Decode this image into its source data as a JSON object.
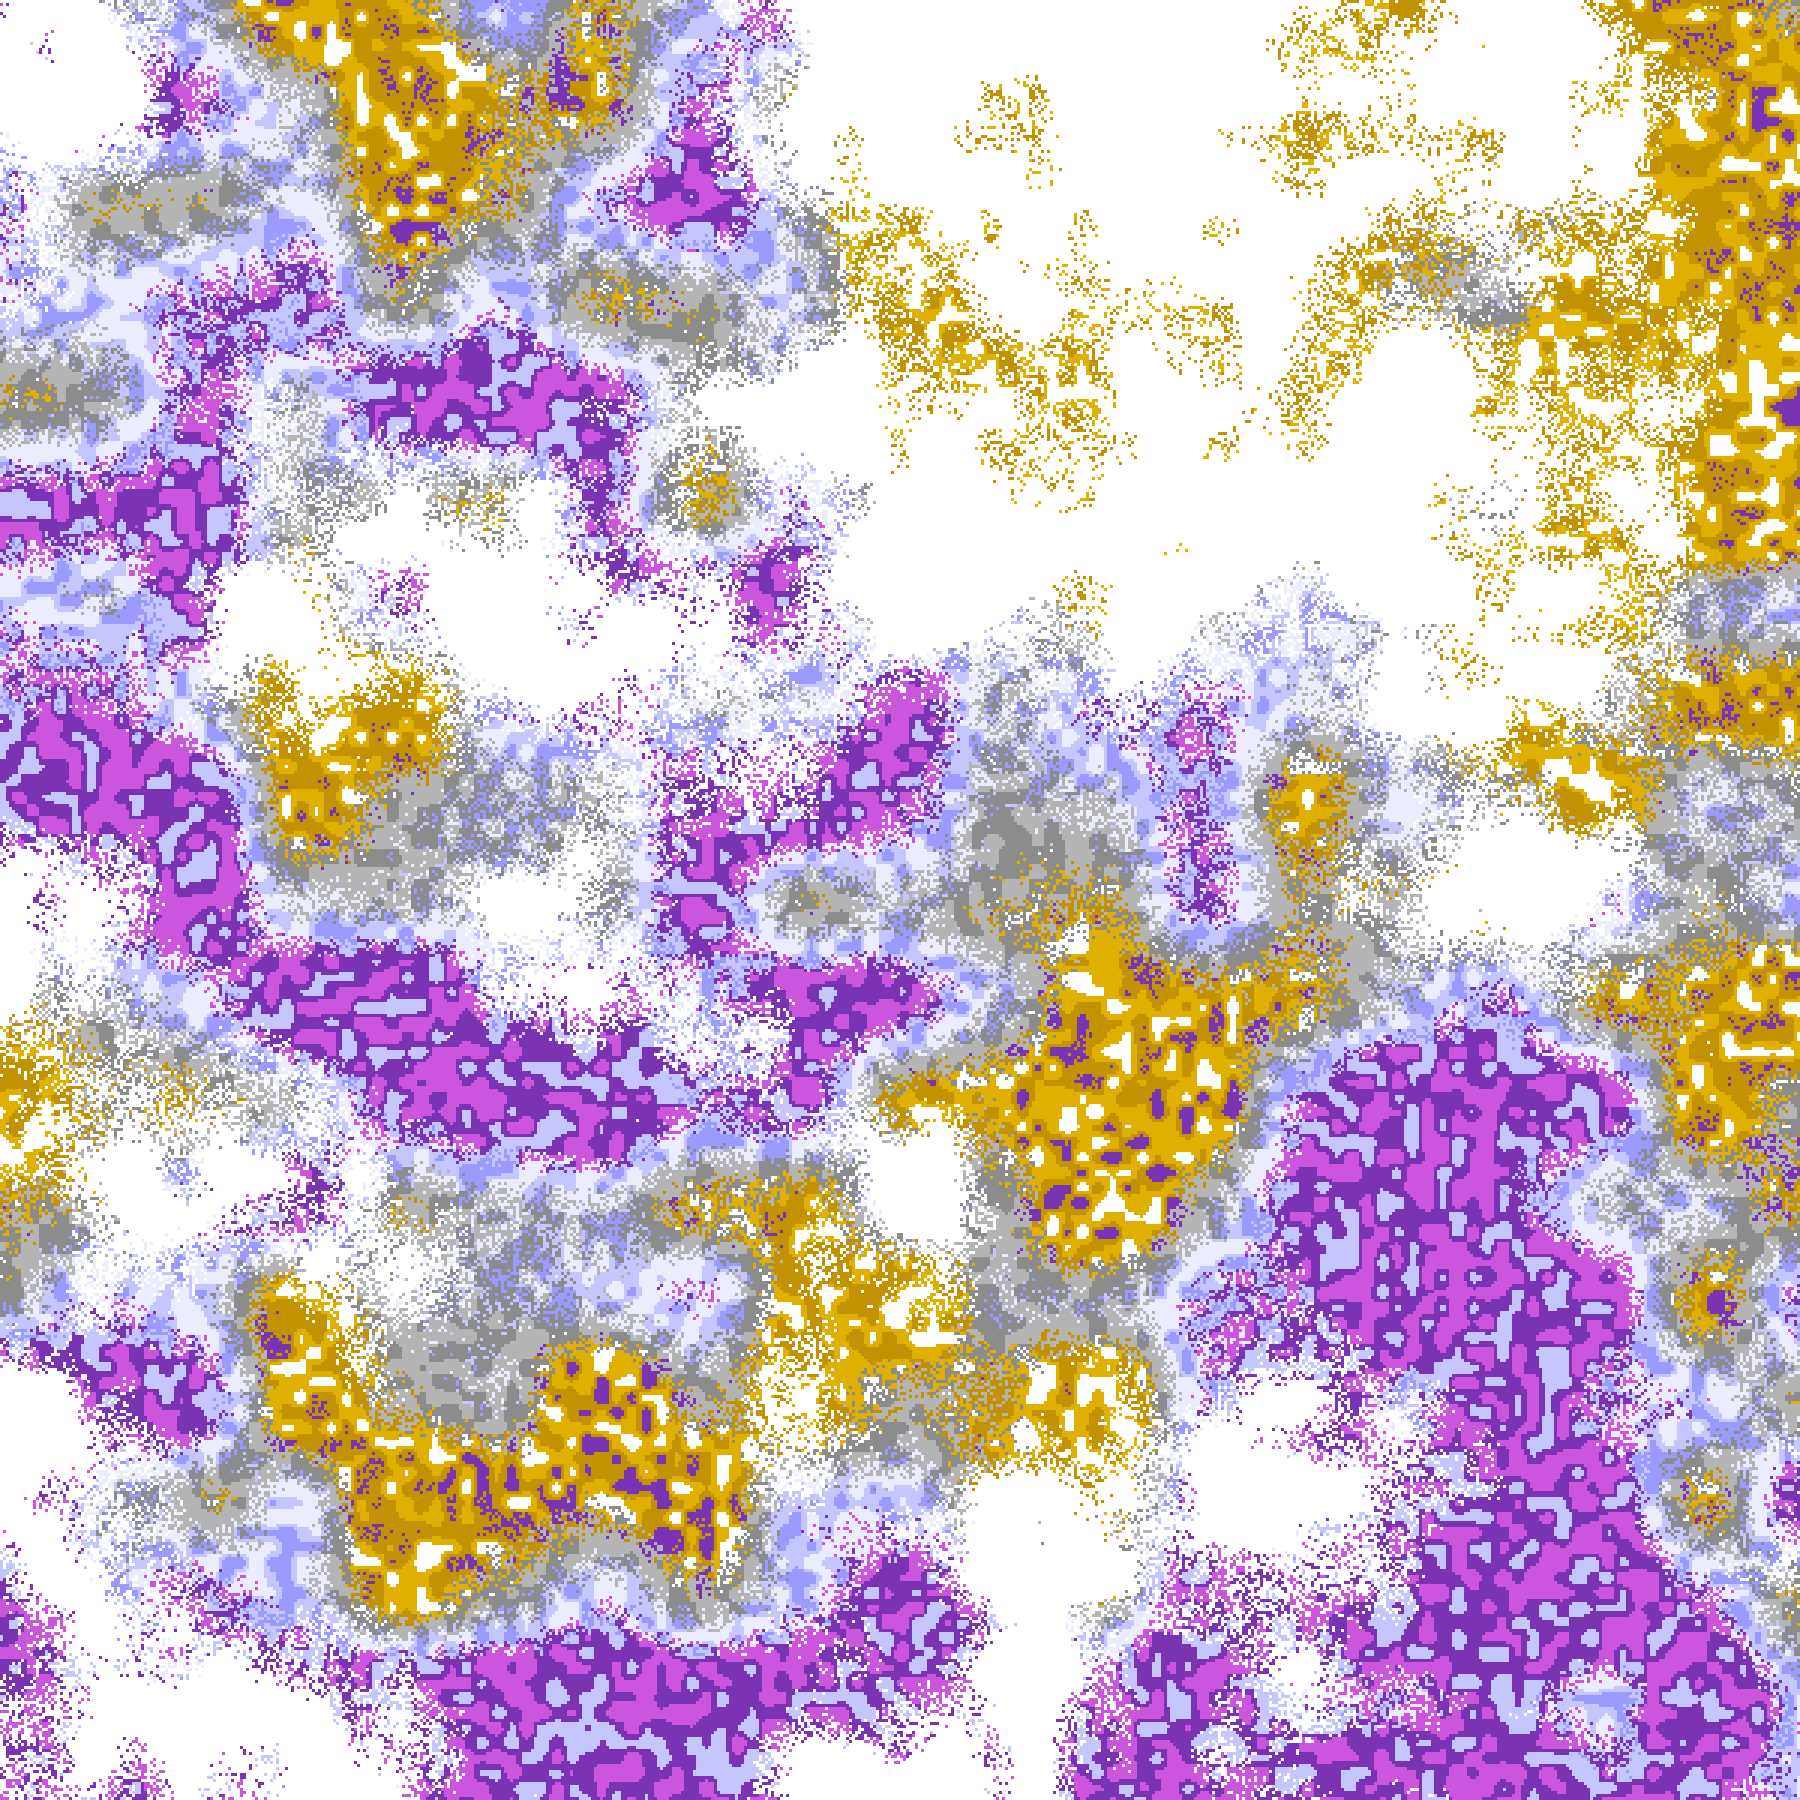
{
  "map": {
    "palette": {
      "clear": "#ffffff",
      "gold_dark": "#c39200",
      "gold_light": "#e0b000",
      "purple": "#7a33b3",
      "magenta": "#cc55dd",
      "periwinkle": "#9a9aff",
      "lavender": "#c6c6ff",
      "pale_lavender": "#ececff",
      "gray_light": "#b4b4b4",
      "gray_dark": "#8c8c8c"
    }
  }
}
